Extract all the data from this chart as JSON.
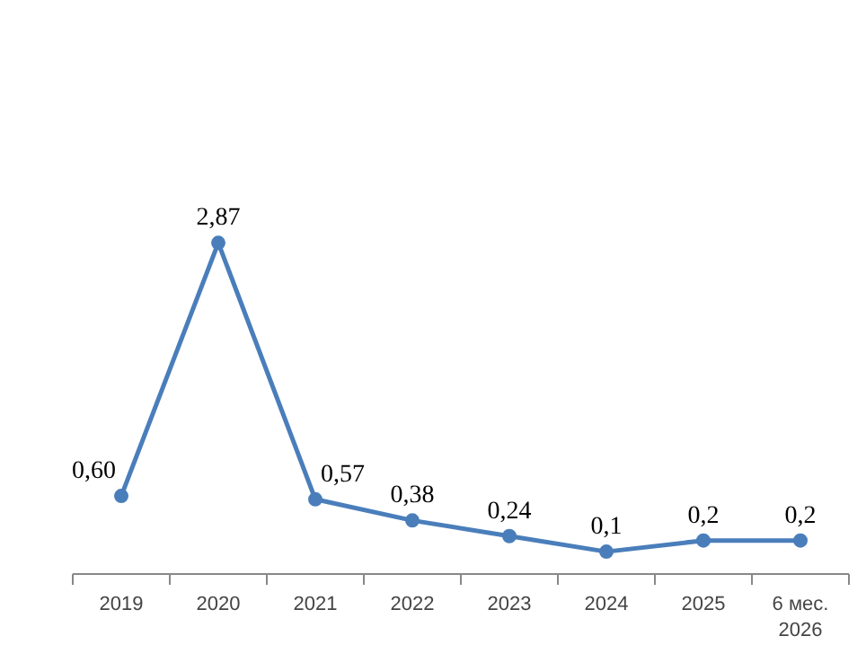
{
  "chart_data": {
    "type": "line",
    "categories": [
      "2019",
      "2020",
      "2021",
      "2022",
      "2023",
      "2024",
      "2025",
      "6 мес.\n2026"
    ],
    "series": [
      {
        "color": "#4a7ebb",
        "values": [
          0.6,
          2.87,
          0.57,
          0.38,
          0.24,
          0.1,
          0.2,
          0.2
        ],
        "value_labels": [
          "0,60",
          "2,87",
          "0,57",
          "0,38",
          "0,24",
          "0,1",
          "0,2",
          "0,2"
        ]
      }
    ],
    "marker": "circle",
    "grid": false,
    "tick_labels": "x"
  }
}
